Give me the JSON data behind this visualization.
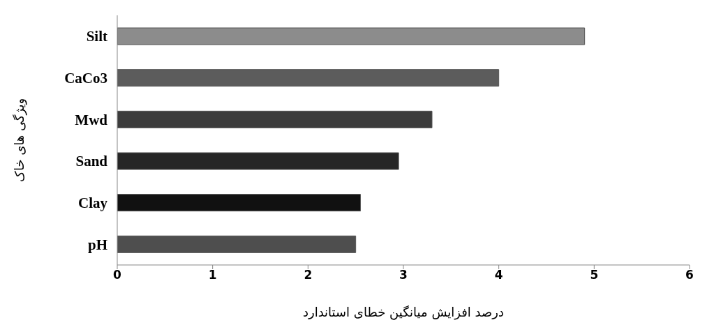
{
  "chart_data": {
    "type": "bar",
    "orientation": "horizontal",
    "categories": [
      "Silt",
      "CaCo3",
      "Mwd",
      "Sand",
      "Clay",
      "pH"
    ],
    "values": [
      4.9,
      4.0,
      3.3,
      2.95,
      2.55,
      2.5
    ],
    "colors": [
      "#8c8c8c",
      "#5c5c5c",
      "#3c3c3c",
      "#262626",
      "#111111",
      "#4e4e4e"
    ],
    "xlim": [
      0,
      6
    ],
    "xticks": [
      0,
      1,
      2,
      3,
      4,
      5,
      6
    ],
    "grid": false,
    "xlabel": "درصد افزایش میانگین  خطای استاندارد",
    "ylabel": "ویژگی های خاک"
  }
}
